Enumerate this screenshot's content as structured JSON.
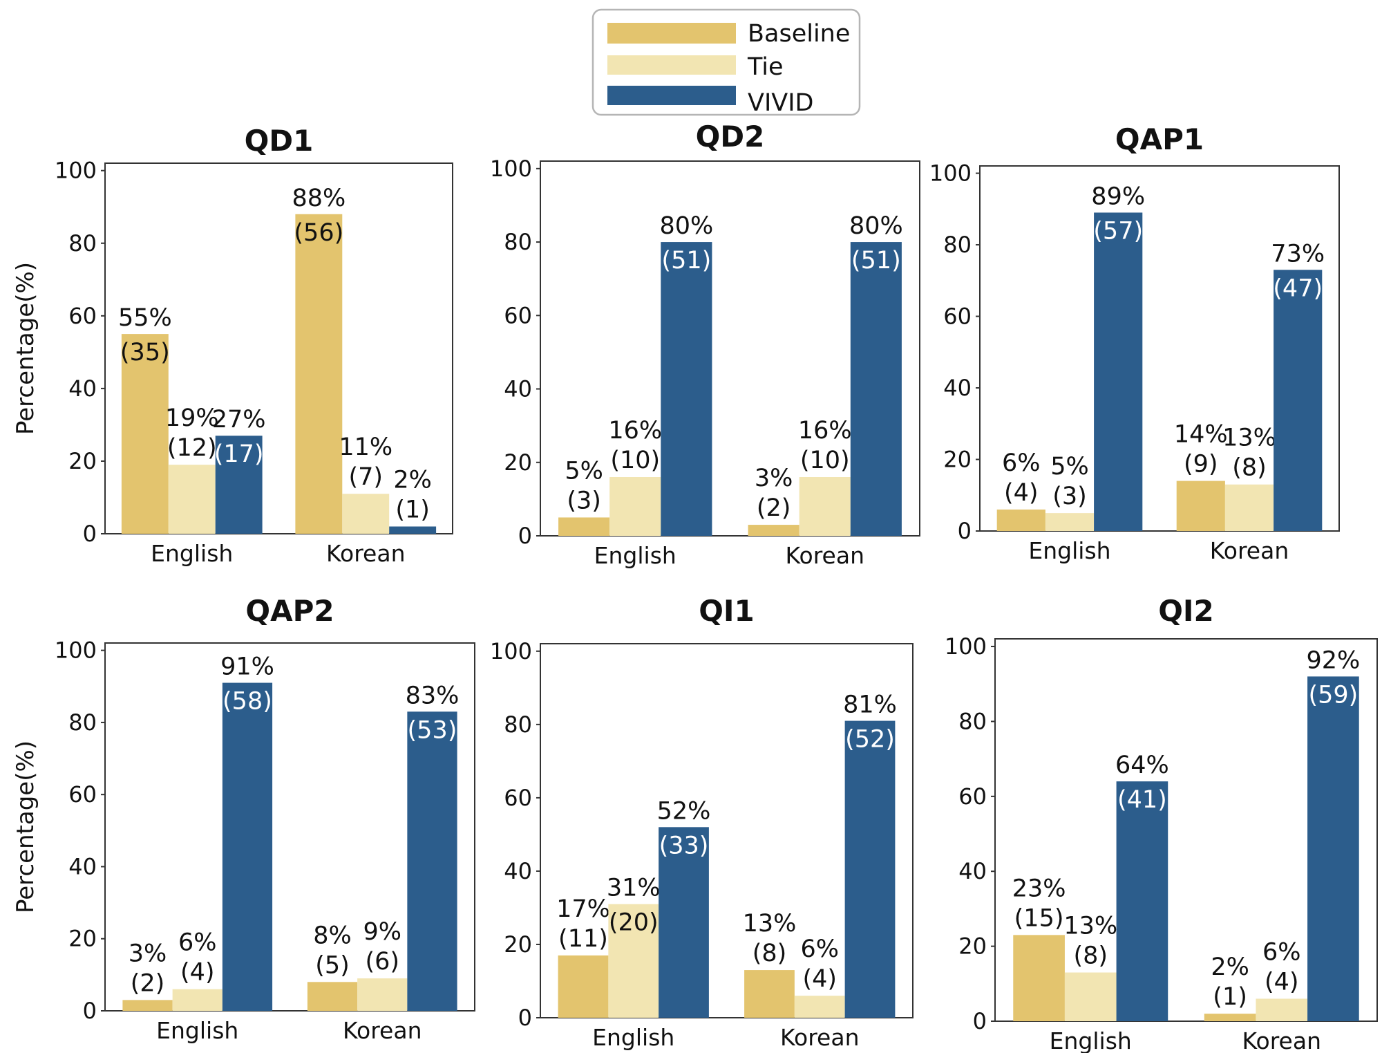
{
  "legend": [
    {
      "name": "Baseline",
      "color": "#E3C46E"
    },
    {
      "name": "Tie",
      "color": "#F2E5B2"
    },
    {
      "name": "VIVID",
      "color": "#2C5D8C"
    }
  ],
  "ylabel": "Percentage(%)",
  "chart_data": [
    {
      "type": "bar",
      "title": "QD1",
      "ylabel": "Percentage(%)",
      "ylim": [
        0,
        100
      ],
      "yticks": [
        "0",
        "20",
        "40",
        "60",
        "80",
        "100"
      ],
      "categories": [
        "English",
        "Korean"
      ],
      "series": [
        {
          "name": "Baseline",
          "values": [
            55,
            88
          ],
          "counts": [
            "(35)",
            "(56)"
          ],
          "labels": [
            "55%",
            "88%"
          ]
        },
        {
          "name": "Tie",
          "values": [
            19,
            11
          ],
          "counts": [
            "(12)",
            "(7)"
          ],
          "labels": [
            "19%",
            "11%"
          ]
        },
        {
          "name": "VIVID",
          "values": [
            27,
            2
          ],
          "counts": [
            "(17)",
            "(1)"
          ],
          "labels": [
            "27%",
            "2%"
          ]
        }
      ]
    },
    {
      "type": "bar",
      "title": "QD2",
      "ylabel": "",
      "ylim": [
        0,
        100
      ],
      "yticks": [
        "0",
        "20",
        "40",
        "60",
        "80",
        "100"
      ],
      "categories": [
        "English",
        "Korean"
      ],
      "series": [
        {
          "name": "Baseline",
          "values": [
            5,
            3
          ],
          "counts": [
            "(3)",
            "(2)"
          ],
          "labels": [
            "5%",
            "3%"
          ]
        },
        {
          "name": "Tie",
          "values": [
            16,
            16
          ],
          "counts": [
            "(10)",
            "(10)"
          ],
          "labels": [
            "16%",
            "16%"
          ]
        },
        {
          "name": "VIVID",
          "values": [
            80,
            80
          ],
          "counts": [
            "(51)",
            "(51)"
          ],
          "labels": [
            "80%",
            "80%"
          ]
        }
      ]
    },
    {
      "type": "bar",
      "title": "QAP1",
      "ylabel": "",
      "ylim": [
        0,
        100
      ],
      "yticks": [
        "0",
        "20",
        "40",
        "60",
        "80",
        "100"
      ],
      "categories": [
        "English",
        "Korean"
      ],
      "series": [
        {
          "name": "Baseline",
          "values": [
            6,
            14
          ],
          "counts": [
            "(4)",
            "(9)"
          ],
          "labels": [
            "6%",
            "14%"
          ]
        },
        {
          "name": "Tie",
          "values": [
            5,
            13
          ],
          "counts": [
            "(3)",
            "(8)"
          ],
          "labels": [
            "5%",
            "13%"
          ]
        },
        {
          "name": "VIVID",
          "values": [
            89,
            73
          ],
          "counts": [
            "(57)",
            "(47)"
          ],
          "labels": [
            "89%",
            "73%"
          ]
        }
      ]
    },
    {
      "type": "bar",
      "title": "QAP2",
      "ylabel": "Percentage(%)",
      "ylim": [
        0,
        100
      ],
      "yticks": [
        "0",
        "20",
        "40",
        "60",
        "80",
        "100"
      ],
      "categories": [
        "English",
        "Korean"
      ],
      "series": [
        {
          "name": "Baseline",
          "values": [
            3,
            8
          ],
          "counts": [
            "(2)",
            "(5)"
          ],
          "labels": [
            "3%",
            "8%"
          ]
        },
        {
          "name": "Tie",
          "values": [
            6,
            9
          ],
          "counts": [
            "(4)",
            "(6)"
          ],
          "labels": [
            "6%",
            "9%"
          ]
        },
        {
          "name": "VIVID",
          "values": [
            91,
            83
          ],
          "counts": [
            "(58)",
            "(53)"
          ],
          "labels": [
            "91%",
            "83%"
          ]
        }
      ]
    },
    {
      "type": "bar",
      "title": "QI1",
      "ylabel": "",
      "ylim": [
        0,
        100
      ],
      "yticks": [
        "0",
        "20",
        "40",
        "60",
        "80",
        "100"
      ],
      "categories": [
        "English",
        "Korean"
      ],
      "series": [
        {
          "name": "Baseline",
          "values": [
            17,
            13
          ],
          "counts": [
            "(11)",
            "(8)"
          ],
          "labels": [
            "17%",
            "13%"
          ]
        },
        {
          "name": "Tie",
          "values": [
            31,
            6
          ],
          "counts": [
            "(20)",
            "(4)"
          ],
          "labels": [
            "31%",
            "6%"
          ]
        },
        {
          "name": "VIVID",
          "values": [
            52,
            81
          ],
          "counts": [
            "(33)",
            "(52)"
          ],
          "labels": [
            "52%",
            "81%"
          ]
        }
      ]
    },
    {
      "type": "bar",
      "title": "QI2",
      "ylabel": "",
      "ylim": [
        0,
        100
      ],
      "yticks": [
        "0",
        "20",
        "40",
        "60",
        "80",
        "100"
      ],
      "categories": [
        "English",
        "Korean"
      ],
      "series": [
        {
          "name": "Baseline",
          "values": [
            23,
            2
          ],
          "counts": [
            "(15)",
            "(1)"
          ],
          "labels": [
            "23%",
            "2%"
          ]
        },
        {
          "name": "Tie",
          "values": [
            13,
            6
          ],
          "counts": [
            "(8)",
            "(4)"
          ],
          "labels": [
            "13%",
            "6%"
          ]
        },
        {
          "name": "VIVID",
          "values": [
            64,
            92
          ],
          "counts": [
            "(41)",
            "(59)"
          ],
          "labels": [
            "64%",
            "92%"
          ]
        }
      ]
    }
  ]
}
